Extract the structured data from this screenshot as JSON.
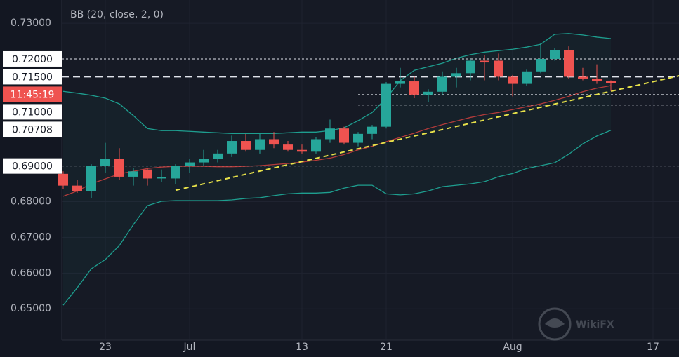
{
  "chart_data": {
    "type": "candlestick",
    "indicator": "BB (20, close, 2, 0)",
    "ylim": [
      0.6412,
      0.7365
    ],
    "yticks": [
      {
        "value": 0.73,
        "label": "0.73000"
      },
      {
        "value": 0.68,
        "label": "0.68000"
      },
      {
        "value": 0.67,
        "label": "0.67000"
      },
      {
        "value": 0.66,
        "label": "0.66000"
      },
      {
        "value": 0.65,
        "label": "0.65000"
      }
    ],
    "xticks": [
      {
        "value": 3,
        "label": "23"
      },
      {
        "value": 9,
        "label": "Jul"
      },
      {
        "value": 17,
        "label": "13"
      },
      {
        "value": 23,
        "label": "21"
      },
      {
        "value": 32,
        "label": "Aug"
      },
      {
        "value": 42,
        "label": "17"
      }
    ],
    "up_color": "#26a69a",
    "down_color": "#ef5350",
    "open": [
      0.6878,
      0.6845,
      0.683,
      0.69,
      0.692,
      0.687,
      0.689,
      0.6865,
      0.6865,
      0.69,
      0.691,
      0.692,
      0.6935,
      0.697,
      0.6945,
      0.6975,
      0.696,
      0.6945,
      0.694,
      0.6975,
      0.7005,
      0.6965,
      0.699,
      0.701,
      0.713,
      0.7137,
      0.71,
      0.7108,
      0.715,
      0.716,
      0.7195,
      0.7195,
      0.715,
      0.713,
      0.7165,
      0.72,
      0.7225,
      0.715,
      0.7145,
      0.7137
    ],
    "high": [
      0.6885,
      0.686,
      0.6905,
      0.6965,
      0.695,
      0.6895,
      0.6895,
      0.689,
      0.6905,
      0.692,
      0.6945,
      0.6945,
      0.6985,
      0.699,
      0.699,
      0.6995,
      0.697,
      0.696,
      0.698,
      0.703,
      0.701,
      0.6995,
      0.7015,
      0.7135,
      0.7175,
      0.715,
      0.7115,
      0.7165,
      0.7175,
      0.72,
      0.721,
      0.7215,
      0.7155,
      0.717,
      0.7245,
      0.723,
      0.7235,
      0.7175,
      0.7185,
      0.714
    ],
    "low": [
      0.6835,
      0.6825,
      0.681,
      0.688,
      0.686,
      0.6845,
      0.6845,
      0.6855,
      0.685,
      0.688,
      0.69,
      0.691,
      0.6925,
      0.694,
      0.6935,
      0.695,
      0.694,
      0.6935,
      0.6935,
      0.6965,
      0.696,
      0.6955,
      0.6975,
      0.7005,
      0.712,
      0.709,
      0.708,
      0.71,
      0.712,
      0.714,
      0.714,
      0.714,
      0.7095,
      0.7125,
      0.716,
      0.7195,
      0.7145,
      0.714,
      0.713,
      0.711
    ],
    "close": [
      0.6845,
      0.683,
      0.69,
      0.692,
      0.687,
      0.6885,
      0.6865,
      0.6868,
      0.69,
      0.691,
      0.692,
      0.6935,
      0.697,
      0.6945,
      0.6975,
      0.696,
      0.6945,
      0.694,
      0.6975,
      0.7005,
      0.6965,
      0.699,
      0.701,
      0.713,
      0.7137,
      0.71,
      0.7108,
      0.715,
      0.716,
      0.7195,
      0.719,
      0.715,
      0.713,
      0.7165,
      0.72,
      0.7225,
      0.715,
      0.7145,
      0.7137,
      0.7133
    ],
    "bands": {
      "upper": [
        0.7109,
        0.7104,
        0.7098,
        0.709,
        0.7074,
        0.7041,
        0.7005,
        0.6999,
        0.6999,
        0.6997,
        0.6995,
        0.6993,
        0.6991,
        0.6991,
        0.6991,
        0.6991,
        0.6993,
        0.6995,
        0.6995,
        0.6999,
        0.7007,
        0.7027,
        0.705,
        0.709,
        0.7139,
        0.7168,
        0.7178,
        0.7188,
        0.7202,
        0.7212,
        0.7219,
        0.7223,
        0.7227,
        0.7233,
        0.7241,
        0.7269,
        0.7271,
        0.7267,
        0.7261,
        0.7257
      ],
      "middle": [
        0.6815,
        0.683,
        0.685,
        0.6864,
        0.6878,
        0.6885,
        0.6893,
        0.6897,
        0.6899,
        0.6899,
        0.6899,
        0.6898,
        0.6898,
        0.6899,
        0.6901,
        0.6904,
        0.6907,
        0.6911,
        0.6916,
        0.6922,
        0.6932,
        0.6945,
        0.6955,
        0.6968,
        0.698,
        0.6992,
        0.7005,
        0.7016,
        0.7026,
        0.7036,
        0.7044,
        0.705,
        0.7058,
        0.7066,
        0.7074,
        0.7084,
        0.7095,
        0.7108,
        0.7118,
        0.7125
      ],
      "lower": [
        0.651,
        0.6559,
        0.6612,
        0.6638,
        0.6677,
        0.6736,
        0.6789,
        0.6801,
        0.6803,
        0.6803,
        0.6803,
        0.6803,
        0.6805,
        0.6809,
        0.6811,
        0.6817,
        0.6822,
        0.6824,
        0.6824,
        0.6826,
        0.6838,
        0.6846,
        0.6846,
        0.6822,
        0.6819,
        0.6822,
        0.683,
        0.6842,
        0.6846,
        0.685,
        0.6856,
        0.687,
        0.6879,
        0.6893,
        0.6901,
        0.6909,
        0.6933,
        0.6962,
        0.6984,
        0.7
      ],
      "band_color": "#1e9e8f",
      "middle_color": "#b33b3b"
    },
    "levels": [
      {
        "value": 0.72,
        "label": "0.72000",
        "dash": "dotted"
      },
      {
        "value": 0.715,
        "label": "0.71500",
        "dash": "dashed"
      },
      {
        "value": 0.71,
        "label": "0.71000",
        "dash": "dotted",
        "from": 21
      },
      {
        "value": 0.70708,
        "label": "0.70708",
        "dash": "dotted",
        "from": 21
      },
      {
        "value": 0.69,
        "label": "0.69000",
        "dash": "dotted"
      }
    ],
    "trendline": {
      "x": [
        8,
        44
      ],
      "values": [
        0.6832,
        0.7154
      ],
      "color": "#e8e24a"
    },
    "countdown": "11:45:19",
    "watermark": "WikiFX"
  }
}
